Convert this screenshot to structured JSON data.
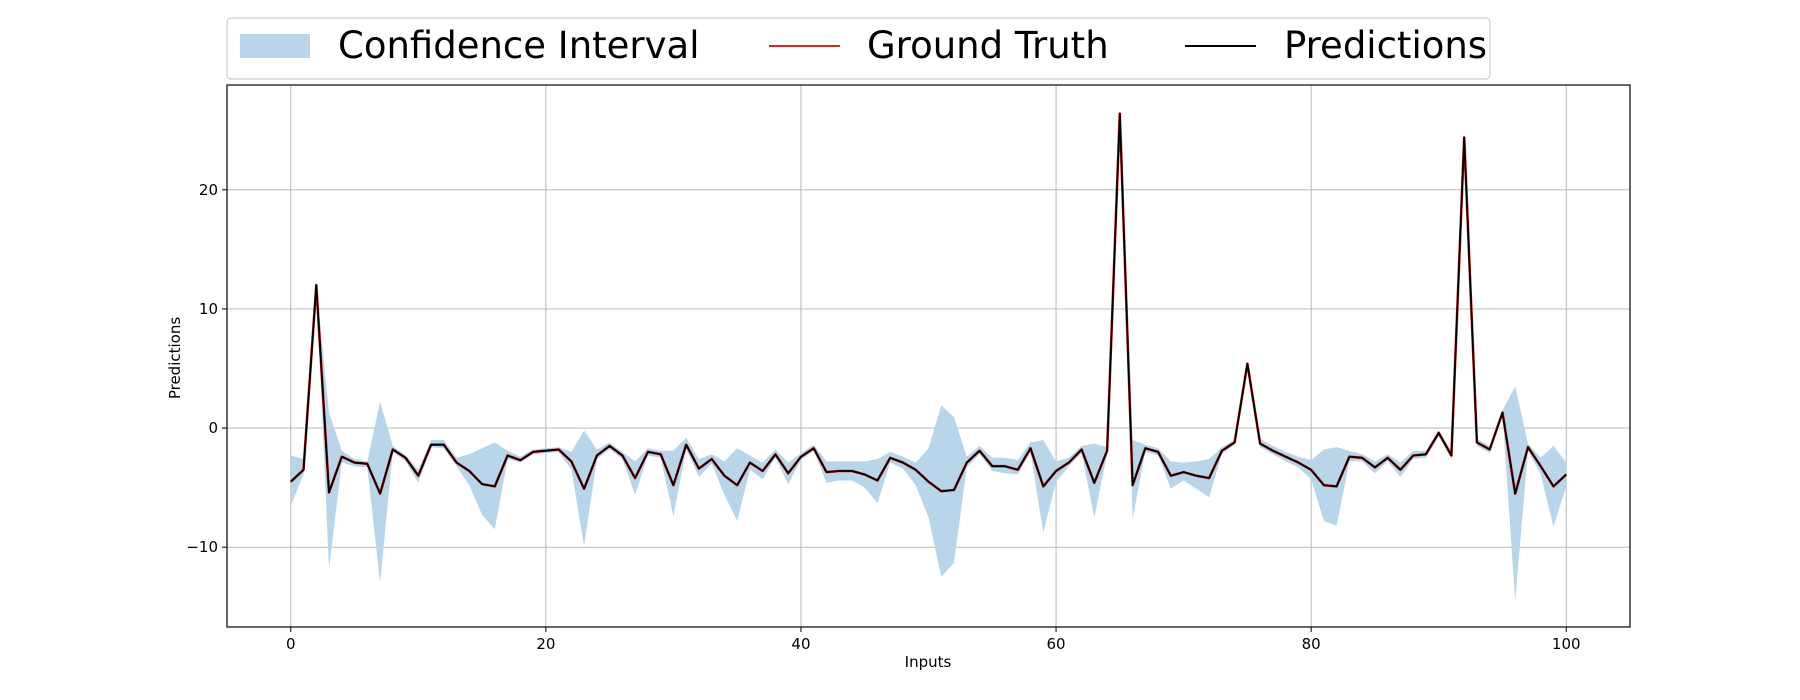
{
  "chart_data": {
    "type": "line",
    "title": "",
    "xlabel": "Inputs",
    "ylabel": "Predictions",
    "xlim": [
      -5,
      105
    ],
    "ylim": [
      -16.7,
      28.8
    ],
    "x_ticks": [
      0,
      20,
      40,
      60,
      80,
      100
    ],
    "y_ticks": [
      -10,
      0,
      10,
      20
    ],
    "y_tick_labels": [
      "−10",
      "0",
      "10",
      "20"
    ],
    "grid": true,
    "legend_position": "top-center",
    "colors": {
      "confidence_interval": "#b9d5ea",
      "ground_truth": "#d62728",
      "predictions": "#000000",
      "grid": "#b0b0b0",
      "legend_border": "#cccccc"
    },
    "legend": [
      {
        "label": "Confidence Interval",
        "kind": "patch",
        "series": "confidence_interval"
      },
      {
        "label": "Ground Truth",
        "kind": "line",
        "series": "ground_truth"
      },
      {
        "label": "Predictions",
        "kind": "line",
        "series": "predictions"
      }
    ],
    "x": [
      0,
      1,
      2,
      3,
      4,
      5,
      6,
      7,
      8,
      9,
      10,
      11,
      12,
      13,
      14,
      15,
      16,
      17,
      18,
      19,
      20,
      21,
      22,
      23,
      24,
      25,
      26,
      27,
      28,
      29,
      30,
      31,
      32,
      33,
      34,
      35,
      36,
      37,
      38,
      39,
      40,
      41,
      42,
      43,
      44,
      45,
      46,
      47,
      48,
      49,
      50,
      51,
      52,
      53,
      54,
      55,
      56,
      57,
      58,
      59,
      60,
      61,
      62,
      63,
      64,
      65,
      66,
      67,
      68,
      69,
      70,
      71,
      72,
      73,
      74,
      75,
      76,
      77,
      78,
      79,
      80,
      81,
      82,
      83,
      84,
      85,
      86,
      87,
      88,
      89,
      90,
      91,
      92,
      93,
      94,
      95,
      96,
      97,
      98,
      99,
      100
    ],
    "series": [
      {
        "name": "Ground Truth",
        "values": [
          -4.5,
          -3.5,
          12.0,
          -5.4,
          -2.4,
          -2.9,
          -3.0,
          -5.5,
          -1.8,
          -2.5,
          -4.0,
          -1.4,
          -1.4,
          -2.9,
          -3.6,
          -4.7,
          -4.9,
          -2.3,
          -2.7,
          -2.0,
          -1.9,
          -1.8,
          -2.8,
          -5.1,
          -2.3,
          -1.5,
          -2.3,
          -4.2,
          -2.0,
          -2.2,
          -4.8,
          -1.4,
          -3.4,
          -2.6,
          -4.0,
          -4.8,
          -2.9,
          -3.6,
          -2.2,
          -3.8,
          -2.4,
          -1.7,
          -3.7,
          -3.6,
          -3.6,
          -3.9,
          -4.4,
          -2.5,
          -2.9,
          -3.5,
          -4.5,
          -5.3,
          -5.2,
          -2.9,
          -1.9,
          -3.2,
          -3.2,
          -3.5,
          -1.7,
          -4.9,
          -3.6,
          -2.9,
          -1.8,
          -4.6,
          -1.9,
          26.4,
          -4.8,
          -1.7,
          -2.0,
          -4.0,
          -3.7,
          -4.0,
          -4.2,
          -1.9,
          -1.2,
          5.4,
          -1.3,
          -1.9,
          -2.4,
          -2.9,
          -3.5,
          -4.8,
          -4.9,
          -2.4,
          -2.5,
          -3.3,
          -2.5,
          -3.5,
          -2.3,
          -2.2,
          -0.4,
          -2.3,
          24.4,
          -1.2,
          -1.8,
          1.3,
          -5.5,
          -1.6,
          -3.2,
          -4.9,
          -3.9
        ]
      },
      {
        "name": "Predictions",
        "values": [
          -4.5,
          -3.5,
          12.0,
          -5.4,
          -2.4,
          -2.9,
          -3.0,
          -5.5,
          -1.8,
          -2.5,
          -4.0,
          -1.4,
          -1.4,
          -2.9,
          -3.6,
          -4.7,
          -4.9,
          -2.3,
          -2.7,
          -2.0,
          -1.9,
          -1.8,
          -2.8,
          -5.1,
          -2.3,
          -1.5,
          -2.3,
          -4.2,
          -2.0,
          -2.2,
          -4.8,
          -1.4,
          -3.4,
          -2.6,
          -4.0,
          -4.8,
          -2.9,
          -3.6,
          -2.2,
          -3.8,
          -2.4,
          -1.7,
          -3.7,
          -3.6,
          -3.6,
          -3.9,
          -4.4,
          -2.5,
          -2.9,
          -3.5,
          -4.5,
          -5.3,
          -5.2,
          -2.9,
          -1.9,
          -3.2,
          -3.2,
          -3.5,
          -1.7,
          -4.9,
          -3.6,
          -2.9,
          -1.8,
          -4.6,
          -1.9,
          26.4,
          -4.8,
          -1.7,
          -2.0,
          -4.0,
          -3.7,
          -4.0,
          -4.2,
          -1.9,
          -1.2,
          5.4,
          -1.3,
          -1.9,
          -2.4,
          -2.9,
          -3.5,
          -4.8,
          -4.9,
          -2.4,
          -2.5,
          -3.3,
          -2.5,
          -3.5,
          -2.3,
          -2.2,
          -0.4,
          -2.3,
          24.4,
          -1.2,
          -1.8,
          1.3,
          -5.5,
          -1.6,
          -3.2,
          -4.9,
          -3.9
        ]
      }
    ],
    "confidence_interval": {
      "name": "Confidence Interval",
      "upper": [
        -2.3,
        -2.6,
        12.0,
        1.3,
        -1.9,
        -2.6,
        -2.8,
        2.2,
        -1.5,
        -2.3,
        -3.5,
        -1.0,
        -1.0,
        -2.5,
        -2.2,
        -1.7,
        -1.2,
        -1.9,
        -2.4,
        -1.8,
        -1.7,
        -1.6,
        -2.0,
        -0.2,
        -1.8,
        -1.2,
        -2.0,
        -2.8,
        -1.7,
        -1.9,
        -1.9,
        -0.8,
        -2.6,
        -2.2,
        -2.8,
        -1.7,
        -2.3,
        -2.9,
        -1.8,
        -2.9,
        -2.1,
        -1.4,
        -2.8,
        -2.8,
        -2.8,
        -2.8,
        -2.6,
        -2.0,
        -2.4,
        -2.9,
        -1.7,
        1.9,
        0.9,
        -2.4,
        -1.5,
        -2.5,
        -2.5,
        -2.7,
        -1.2,
        -1.0,
        -2.8,
        -2.5,
        -1.5,
        -1.3,
        -1.6,
        26.4,
        -1.0,
        -1.4,
        -1.7,
        -2.8,
        -2.9,
        -2.8,
        -2.6,
        -1.6,
        -1.0,
        5.4,
        -0.9,
        -1.5,
        -2.0,
        -2.4,
        -2.7,
        -1.8,
        -1.6,
        -1.9,
        -2.2,
        -2.8,
        -2.2,
        -2.9,
        -1.9,
        -1.9,
        -0.2,
        -1.9,
        24.4,
        -0.9,
        -1.5,
        1.5,
        3.5,
        -1.3,
        -2.5,
        -1.5,
        -2.9
      ],
      "lower": [
        -6.5,
        -3.9,
        12.0,
        -11.8,
        -2.9,
        -3.2,
        -3.3,
        -13.0,
        -2.0,
        -2.8,
        -4.6,
        -1.6,
        -1.7,
        -3.2,
        -4.8,
        -7.3,
        -8.5,
        -2.6,
        -2.9,
        -2.2,
        -2.1,
        -2.0,
        -3.5,
        -9.9,
        -2.6,
        -1.8,
        -2.6,
        -5.6,
        -2.3,
        -2.5,
        -7.4,
        -1.8,
        -4.1,
        -3.0,
        -5.6,
        -7.8,
        -3.5,
        -4.3,
        -2.5,
        -4.7,
        -2.7,
        -1.9,
        -4.6,
        -4.4,
        -4.4,
        -5.0,
        -6.3,
        -2.9,
        -3.4,
        -4.8,
        -7.5,
        -12.5,
        -11.3,
        -3.3,
        -2.2,
        -3.6,
        -3.8,
        -3.9,
        -2.0,
        -8.8,
        -4.5,
        -3.2,
        -2.1,
        -7.5,
        -2.2,
        26.4,
        -7.6,
        -2.0,
        -2.3,
        -5.1,
        -4.4,
        -5.1,
        -5.8,
        -2.2,
        -1.4,
        5.4,
        -1.6,
        -2.2,
        -2.8,
        -3.3,
        -4.3,
        -7.8,
        -8.2,
        -2.8,
        -2.8,
        -3.8,
        -2.8,
        -4.1,
        -2.6,
        -2.5,
        -0.7,
        -2.6,
        24.4,
        -1.5,
        -2.1,
        1.1,
        -14.5,
        -1.9,
        -3.9,
        -8.3,
        -4.9
      ]
    }
  }
}
